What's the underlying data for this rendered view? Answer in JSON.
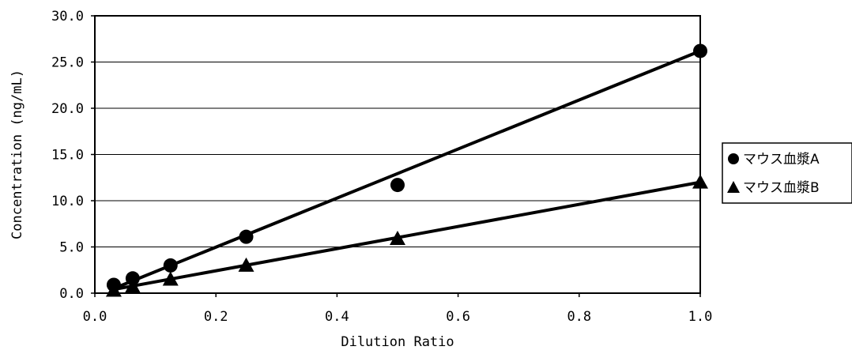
{
  "chart_data": {
    "type": "scatter",
    "xlabel": "Dilution Ratio",
    "ylabel": "Concentration (ng/mL)",
    "xlim": [
      0.0,
      1.0
    ],
    "ylim": [
      0.0,
      30.0
    ],
    "x_ticks": [
      "0.0",
      "0.2",
      "0.4",
      "0.6",
      "0.8",
      "1.0"
    ],
    "y_ticks": [
      "0.0",
      "5.0",
      "10.0",
      "15.0",
      "20.0",
      "25.0",
      "30.0"
    ],
    "x_tick_values": [
      0.0,
      0.2,
      0.4,
      0.6,
      0.8,
      1.0
    ],
    "y_tick_values": [
      0,
      5,
      10,
      15,
      20,
      25,
      30
    ],
    "grid": "horizontal",
    "legend_position": "right",
    "series": [
      {
        "name": "マウス血漿A",
        "marker": "circle",
        "x": [
          0.03125,
          0.0625,
          0.125,
          0.25,
          0.5,
          1.0
        ],
        "y": [
          0.9,
          1.6,
          3.0,
          6.1,
          11.7,
          26.2
        ],
        "trendline": [
          [
            0.03125,
            0.5
          ],
          [
            1.0,
            26.2
          ]
        ],
        "color": "#000000"
      },
      {
        "name": "マウス血漿B",
        "marker": "triangle",
        "x": [
          0.03125,
          0.0625,
          0.125,
          0.25,
          0.5,
          1.0
        ],
        "y": [
          0.3,
          0.7,
          1.5,
          3.0,
          5.9,
          12.0
        ],
        "trendline": [
          [
            0.03125,
            0.4
          ],
          [
            1.0,
            12.0
          ]
        ],
        "color": "#000000"
      }
    ]
  }
}
